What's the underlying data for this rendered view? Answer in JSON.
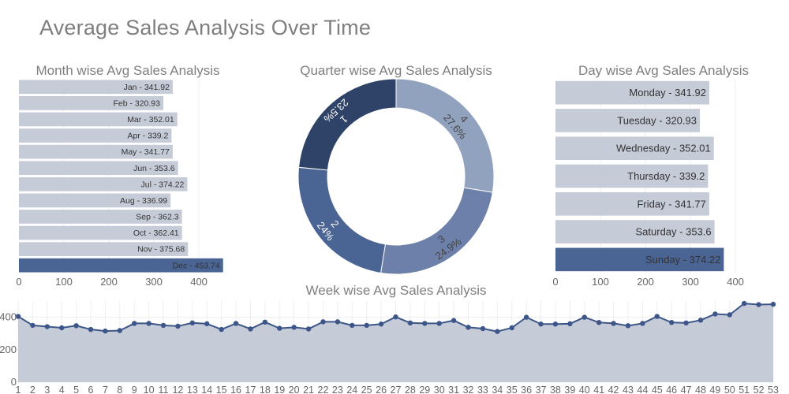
{
  "page": {
    "title": "Average Sales Analysis Over Time"
  },
  "colors": {
    "bar_light": "#c6cbd8",
    "bar_highlight": "#4a6494",
    "donut": [
      "#2f4368",
      "#4a6494",
      "#6c80aa",
      "#91a2be"
    ],
    "week_line": "#3d5689",
    "week_fill": "#c6cbd8"
  },
  "chart_data": [
    {
      "type": "bar",
      "orientation": "horizontal",
      "title": "Month wise Avg Sales Analysis",
      "categories": [
        "Jan",
        "Feb",
        "Mar",
        "Apr",
        "May",
        "Jun",
        "Jul",
        "Aug",
        "Sep",
        "Oct",
        "Nov",
        "Dec"
      ],
      "values": [
        341.92,
        320.93,
        352.01,
        339.2,
        341.77,
        353.6,
        374.22,
        336.99,
        362.3,
        362.41,
        375.68,
        453.74
      ],
      "labels": [
        "Jan - 341.92",
        "Feb - 320.93",
        "Mar - 352.01",
        "Apr - 339.2",
        "May - 341.77",
        "Jun - 353.6",
        "Jul - 374.22",
        "Aug - 336.99",
        "Sep - 362.3",
        "Oct - 362.41",
        "Nov - 375.68",
        "Dec - 453.74"
      ],
      "highlight": 11,
      "xlim": [
        0,
        470
      ],
      "xticks": [
        0,
        100,
        200,
        300,
        400
      ]
    },
    {
      "type": "pie",
      "hole": true,
      "title": "Quarter wise Avg Sales Analysis",
      "labels": [
        "1",
        "2",
        "3",
        "4"
      ],
      "values": [
        23.5,
        24.0,
        24.9,
        27.6
      ],
      "percent_labels": [
        "23.5%",
        "24%",
        "24.9%",
        "27.6%"
      ]
    },
    {
      "type": "bar",
      "orientation": "horizontal",
      "title": "Day wise Avg Sales Analysis",
      "categories": [
        "Monday",
        "Tuesday",
        "Wednesday",
        "Thursday",
        "Friday",
        "Saturday",
        "Sunday"
      ],
      "values": [
        341.92,
        320.93,
        352.01,
        339.2,
        341.77,
        353.6,
        374.22
      ],
      "labels": [
        "Monday - 341.92",
        "Tuesday - 320.93",
        "Wednesday - 352.01",
        "Thursday - 339.2",
        "Friday - 341.77",
        "Saturday - 353.6",
        "Sunday - 374.22"
      ],
      "highlight": 6,
      "xlim": [
        0,
        470
      ],
      "xticks": [
        0,
        100,
        200,
        300,
        400
      ]
    },
    {
      "type": "area",
      "title": "Week wise Avg Sales Analysis",
      "x": [
        1,
        2,
        3,
        4,
        5,
        6,
        7,
        8,
        9,
        10,
        11,
        12,
        13,
        14,
        15,
        16,
        17,
        18,
        19,
        20,
        21,
        22,
        23,
        24,
        25,
        26,
        27,
        28,
        29,
        30,
        31,
        32,
        33,
        34,
        35,
        36,
        37,
        38,
        39,
        40,
        41,
        42,
        43,
        44,
        45,
        46,
        47,
        48,
        49,
        50,
        51,
        52,
        53
      ],
      "values": [
        405,
        350,
        342,
        335,
        348,
        325,
        315,
        318,
        362,
        362,
        350,
        345,
        365,
        360,
        325,
        362,
        328,
        370,
        332,
        338,
        328,
        372,
        372,
        350,
        350,
        358,
        402,
        365,
        362,
        362,
        380,
        338,
        330,
        312,
        335,
        400,
        358,
        358,
        360,
        400,
        368,
        362,
        348,
        362,
        405,
        368,
        365,
        382,
        420,
        415,
        485,
        478,
        480
      ],
      "ylim": [
        0,
        500
      ],
      "yticks": [
        0,
        200,
        400
      ]
    }
  ]
}
